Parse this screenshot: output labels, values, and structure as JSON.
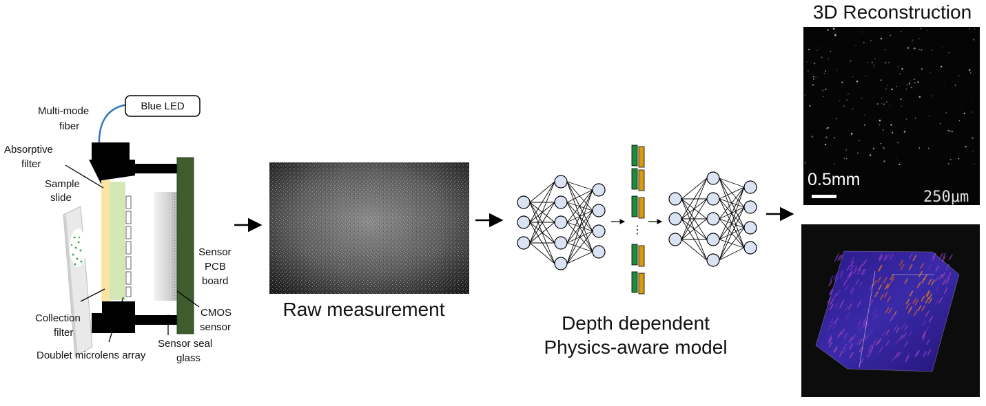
{
  "device": {
    "led": "Blue LED",
    "fiber": "Multi-mode fiber",
    "fiber_lines": [
      "Multi-mode",
      "fiber"
    ],
    "absorptive_lines": [
      "Absorptive",
      "filter"
    ],
    "sample_lines": [
      "Sample",
      "slide"
    ],
    "collection_lines": [
      "Collection",
      "filter"
    ],
    "microlens": "Doublet microlens array",
    "seal_lines": [
      "Sensor seal",
      "glass"
    ],
    "cmos_lines": [
      "CMOS",
      "sensor"
    ],
    "pcb_lines": [
      "Sensor",
      "PCB",
      "board"
    ]
  },
  "raw": {
    "caption": "Raw measurement"
  },
  "model": {
    "caption_lines": [
      "Depth dependent",
      "Physics-aware model"
    ],
    "ellipsis": "⋮"
  },
  "recon": {
    "title": "3D Reconstruction",
    "scalebar": "0.5mm",
    "scale_3d": "250μm"
  },
  "colors": {
    "sample_slide": "#fbe4a2",
    "collection_filter": "#d3e8b6",
    "pcb": "#3e5c2c",
    "node_fill": "#dae3f3",
    "feature_green": "#1e8a3a",
    "feature_orange": "#d89a10",
    "fiber": "#2e75b6"
  }
}
